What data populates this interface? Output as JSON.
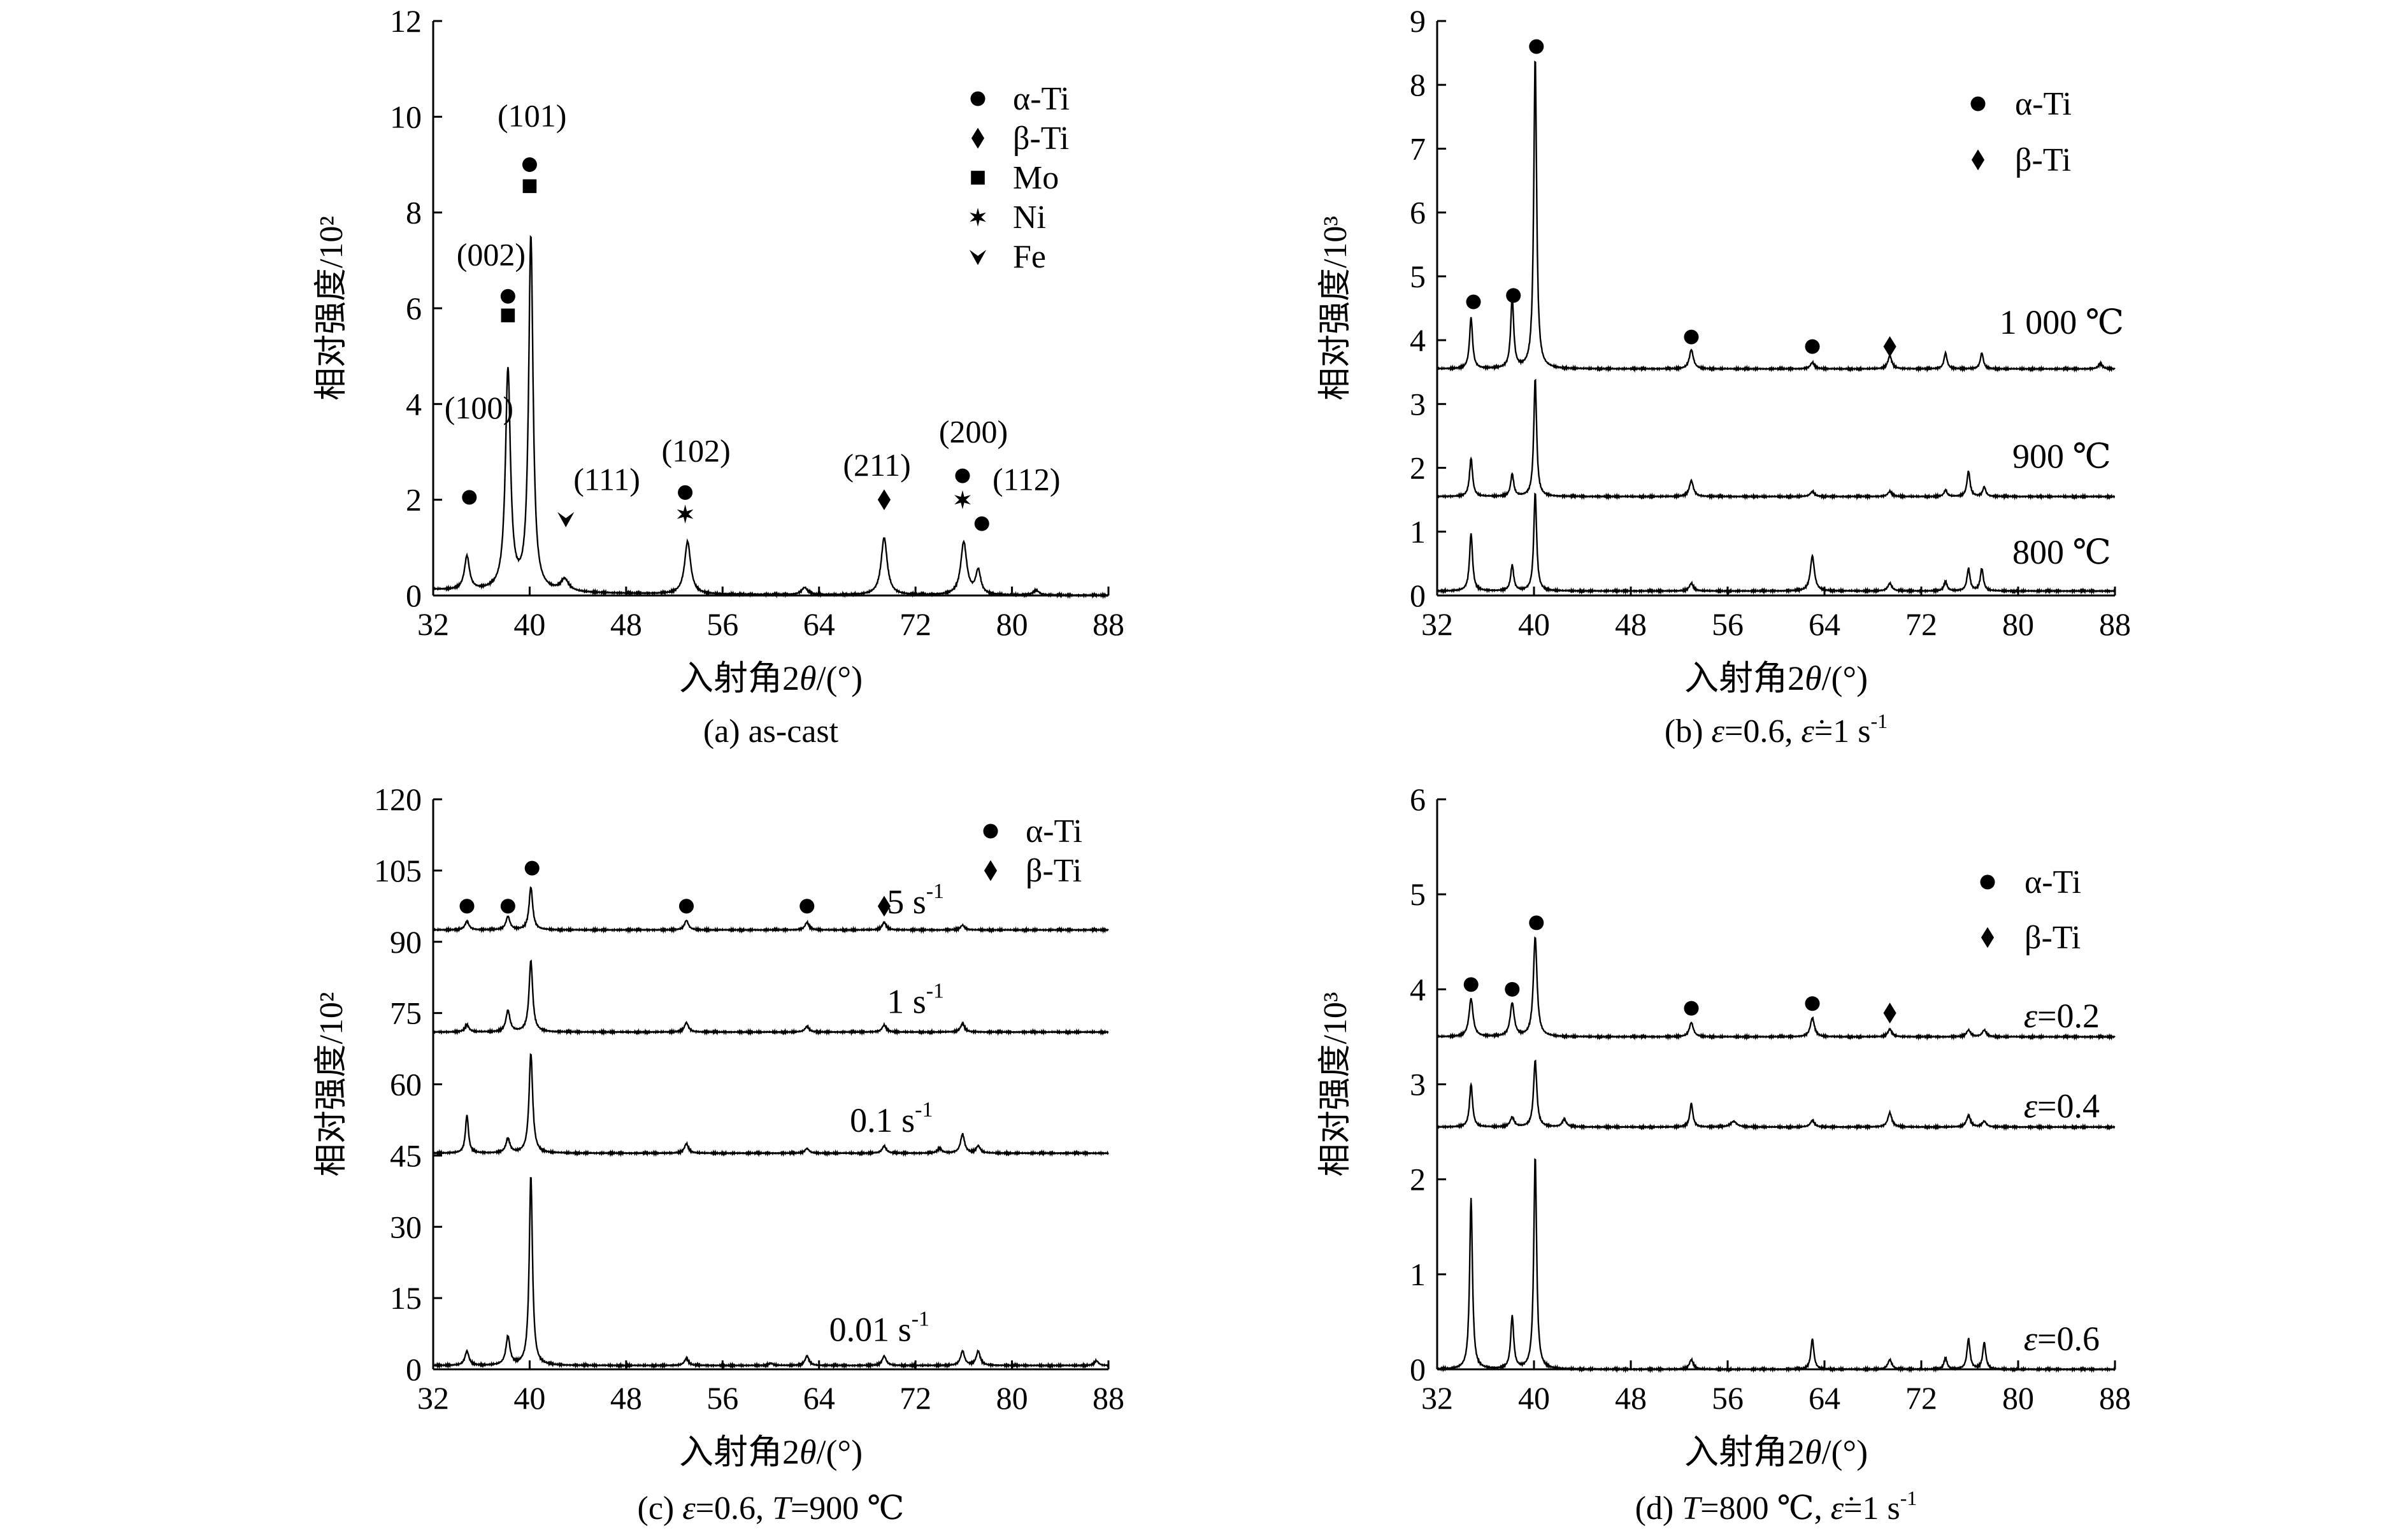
{
  "chart_data": [
    {
      "type": "line",
      "caption": "(a) as-cast",
      "xlabel_prefix": "入射角2",
      "xlabel_theta": "θ",
      "xlabel_suffix": "/(°)",
      "ylabel": "相对强度/10²",
      "xlim": [
        32,
        88
      ],
      "ylim": [
        0,
        12
      ],
      "xticks": [
        32,
        40,
        48,
        56,
        64,
        72,
        80,
        88
      ],
      "yticks": [
        0,
        2,
        4,
        6,
        8,
        10,
        12
      ],
      "baseline": 0.8,
      "series": [
        {
          "offset": 0,
          "peaks": [
            [
              34.8,
              0.7,
              0.25
            ],
            [
              38.2,
              4.6,
              0.25
            ],
            [
              40.1,
              7.4,
              0.22
            ],
            [
              42.9,
              0.25,
              0.4
            ],
            [
              53.1,
              1.1,
              0.3
            ],
            [
              62.8,
              0.15,
              0.3
            ],
            [
              69.4,
              1.2,
              0.3
            ],
            [
              76.0,
              1.1,
              0.3
            ],
            [
              77.2,
              0.5,
              0.25
            ],
            [
              82.0,
              0.1,
              0.3
            ]
          ]
        }
      ],
      "markers": [
        {
          "shape": "circle",
          "x": 35.0,
          "y": 2.05
        },
        {
          "shape": "square",
          "x": 38.2,
          "y": 5.85
        },
        {
          "shape": "circle",
          "x": 38.2,
          "y": 6.25
        },
        {
          "shape": "square",
          "x": 40.0,
          "y": 8.55
        },
        {
          "shape": "circle",
          "x": 40.0,
          "y": 9.0
        },
        {
          "shape": "fe",
          "x": 43.0,
          "y": 1.6
        },
        {
          "shape": "star",
          "x": 52.9,
          "y": 1.7
        },
        {
          "shape": "circle",
          "x": 52.9,
          "y": 2.15
        },
        {
          "shape": "diamond",
          "x": 69.4,
          "y": 2.0
        },
        {
          "shape": "star",
          "x": 75.9,
          "y": 2.0
        },
        {
          "shape": "circle",
          "x": 75.9,
          "y": 2.5
        },
        {
          "shape": "circle",
          "x": 77.5,
          "y": 1.5
        }
      ],
      "peak_labels": [
        {
          "text": "(100)",
          "x": 35.8,
          "y": 3.7
        },
        {
          "text": "(002)",
          "x": 36.8,
          "y": 6.9
        },
        {
          "text": "(101)",
          "x": 40.2,
          "y": 9.8
        },
        {
          "text": "(111)",
          "x": 46.4,
          "y": 2.2
        },
        {
          "text": "(102)",
          "x": 53.8,
          "y": 2.8
        },
        {
          "text": "(211)",
          "x": 68.8,
          "y": 2.5
        },
        {
          "text": "(200)",
          "x": 76.8,
          "y": 3.2
        },
        {
          "text": "(112)",
          "x": 81.2,
          "y": 2.2
        }
      ],
      "series_labels": [],
      "legend": [
        {
          "shape": "circle",
          "label": "α-Ti"
        },
        {
          "shape": "diamond",
          "label": "β-Ti"
        },
        {
          "shape": "square",
          "label": "Mo"
        },
        {
          "shape": "star",
          "label": "Ni"
        },
        {
          "shape": "fe",
          "label": "Fe"
        }
      ]
    },
    {
      "type": "line",
      "caption_parts": [
        "(b)  ",
        "ε",
        "=0.6, ",
        "ε̇",
        "=1 s",
        "-1"
      ],
      "xlabel_prefix": "入射角2",
      "xlabel_theta": "θ",
      "xlabel_suffix": "/(°)",
      "ylabel": "相对强度/10³",
      "xlim": [
        32,
        88
      ],
      "ylim": [
        0,
        9
      ],
      "xticks": [
        32,
        40,
        48,
        56,
        64,
        72,
        80,
        88
      ],
      "yticks": [
        0,
        1,
        2,
        3,
        4,
        5,
        6,
        7,
        8,
        9
      ],
      "baseline": 0.07,
      "series": [
        {
          "offset": 3.55,
          "peaks": [
            [
              34.8,
              0.8,
              0.15
            ],
            [
              38.2,
              1.1,
              0.15
            ],
            [
              40.1,
              4.9,
              0.14
            ],
            [
              53.0,
              0.3,
              0.2
            ],
            [
              63.0,
              0.1,
              0.2
            ],
            [
              69.4,
              0.2,
              0.2
            ],
            [
              74.0,
              0.25,
              0.15
            ],
            [
              77.0,
              0.25,
              0.15
            ],
            [
              86.8,
              0.08,
              0.2
            ]
          ]
        },
        {
          "offset": 1.55,
          "peaks": [
            [
              34.8,
              0.6,
              0.15
            ],
            [
              38.2,
              0.35,
              0.15
            ],
            [
              40.1,
              1.85,
              0.14
            ],
            [
              53.0,
              0.25,
              0.2
            ],
            [
              63.0,
              0.08,
              0.2
            ],
            [
              69.4,
              0.08,
              0.2
            ],
            [
              74.0,
              0.1,
              0.15
            ],
            [
              75.9,
              0.4,
              0.15
            ],
            [
              77.2,
              0.15,
              0.15
            ]
          ]
        },
        {
          "offset": 0.07,
          "peaks": [
            [
              34.8,
              0.9,
              0.15
            ],
            [
              38.2,
              0.4,
              0.15
            ],
            [
              40.1,
              1.55,
              0.14
            ],
            [
              53.0,
              0.12,
              0.2
            ],
            [
              63.0,
              0.55,
              0.2
            ],
            [
              69.4,
              0.12,
              0.2
            ],
            [
              74.0,
              0.15,
              0.15
            ],
            [
              75.9,
              0.35,
              0.15
            ],
            [
              77.0,
              0.35,
              0.15
            ]
          ]
        }
      ],
      "markers": [
        {
          "shape": "circle",
          "x": 35.0,
          "y": 4.6
        },
        {
          "shape": "circle",
          "x": 38.3,
          "y": 4.7
        },
        {
          "shape": "circle",
          "x": 40.2,
          "y": 8.6
        },
        {
          "shape": "circle",
          "x": 53.0,
          "y": 4.05
        },
        {
          "shape": "circle",
          "x": 63.0,
          "y": 3.9
        },
        {
          "shape": "diamond",
          "x": 69.4,
          "y": 3.9
        }
      ],
      "peak_labels": [],
      "series_labels": [
        {
          "text": "1 000 ℃",
          "x": 83.6,
          "y": 4.1
        },
        {
          "text": "900 ℃",
          "x": 83.6,
          "y": 2.0
        },
        {
          "text": "800 ℃",
          "x": 83.6,
          "y": 0.5
        }
      ],
      "legend": [
        {
          "shape": "circle",
          "label": "α-Ti"
        },
        {
          "shape": "diamond",
          "label": "β-Ti"
        }
      ]
    },
    {
      "type": "line",
      "caption_parts": [
        "(c)  ",
        "ε",
        "=0.6, ",
        "T",
        "=900 ℃"
      ],
      "xlabel_prefix": "入射角2",
      "xlabel_theta": "θ",
      "xlabel_suffix": "/(°)",
      "ylabel": "相对强度/10²",
      "xlim": [
        32,
        88
      ],
      "ylim": [
        0,
        120
      ],
      "xticks": [
        32,
        40,
        48,
        56,
        64,
        72,
        80,
        88
      ],
      "yticks": [
        0,
        15,
        30,
        45,
        60,
        75,
        90,
        105,
        120
      ],
      "baseline": 0.8,
      "series": [
        {
          "offset": 92.5,
          "peaks": [
            [
              34.8,
              1.8,
              0.2
            ],
            [
              38.2,
              2.8,
              0.2
            ],
            [
              40.1,
              9.0,
              0.18
            ],
            [
              53.0,
              2.0,
              0.2
            ],
            [
              63.0,
              1.6,
              0.2
            ],
            [
              69.4,
              1.6,
              0.2
            ],
            [
              75.9,
              1.0,
              0.2
            ]
          ]
        },
        {
          "offset": 71,
          "peaks": [
            [
              34.8,
              1.5,
              0.2
            ],
            [
              38.2,
              4.5,
              0.2
            ],
            [
              40.1,
              15.0,
              0.18
            ],
            [
              53.0,
              2.0,
              0.2
            ],
            [
              63.0,
              1.2,
              0.2
            ],
            [
              69.4,
              1.5,
              0.2
            ],
            [
              75.9,
              1.8,
              0.2
            ]
          ]
        },
        {
          "offset": 45.5,
          "peaks": [
            [
              34.8,
              8.0,
              0.15
            ],
            [
              38.2,
              3.0,
              0.2
            ],
            [
              40.1,
              21.0,
              0.18
            ],
            [
              53.0,
              2.0,
              0.2
            ],
            [
              63.0,
              1.0,
              0.2
            ],
            [
              69.4,
              1.5,
              0.2
            ],
            [
              74.0,
              1.0,
              0.2
            ],
            [
              75.9,
              4.0,
              0.2
            ],
            [
              77.2,
              1.5,
              0.2
            ]
          ]
        },
        {
          "offset": 0.8,
          "peaks": [
            [
              34.8,
              3.0,
              0.2
            ],
            [
              38.2,
              6.0,
              0.2
            ],
            [
              40.1,
              40.0,
              0.16
            ],
            [
              53.0,
              1.5,
              0.2
            ],
            [
              60.0,
              0.5,
              0.2
            ],
            [
              63.0,
              2.0,
              0.2
            ],
            [
              69.4,
              2.0,
              0.2
            ],
            [
              75.9,
              3.0,
              0.2
            ],
            [
              77.2,
              3.0,
              0.2
            ],
            [
              87.0,
              1.0,
              0.2
            ]
          ]
        }
      ],
      "markers": [
        {
          "shape": "circle",
          "x": 34.8,
          "y": 97.5
        },
        {
          "shape": "circle",
          "x": 38.2,
          "y": 97.5
        },
        {
          "shape": "circle",
          "x": 40.2,
          "y": 105.5
        },
        {
          "shape": "circle",
          "x": 53.0,
          "y": 97.5
        },
        {
          "shape": "circle",
          "x": 63.0,
          "y": 97.5
        },
        {
          "shape": "diamond",
          "x": 69.4,
          "y": 97.5
        }
      ],
      "peak_labels": [],
      "series_labels": [
        {
          "text": "5 s",
          "sup": "-1",
          "x": 72.0,
          "y": 96
        },
        {
          "text": "1 s",
          "sup": "-1",
          "x": 72.0,
          "y": 75
        },
        {
          "text": "0.1 s",
          "sup": "-1",
          "x": 70.0,
          "y": 50
        },
        {
          "text": "0.01 s",
          "sup": "-1",
          "x": 69.0,
          "y": 6
        }
      ],
      "legend": [
        {
          "shape": "circle",
          "label": "α-Ti"
        },
        {
          "shape": "diamond",
          "label": "β-Ti"
        }
      ]
    },
    {
      "type": "line",
      "caption_parts": [
        "(d)  ",
        "T",
        "=800 ℃, ",
        "ε̇",
        "=1 s",
        "-1"
      ],
      "xlabel_prefix": "入射角2",
      "xlabel_theta": "θ",
      "xlabel_suffix": "/(°)",
      "ylabel": "相对强度/10³",
      "xlim": [
        32,
        88
      ],
      "ylim": [
        0,
        6
      ],
      "xticks": [
        32,
        40,
        48,
        56,
        64,
        72,
        80,
        88
      ],
      "yticks": [
        0,
        1,
        2,
        3,
        4,
        5,
        6
      ],
      "baseline": 0.0,
      "series": [
        {
          "offset": 3.5,
          "peaks": [
            [
              34.8,
              0.4,
              0.2
            ],
            [
              38.2,
              0.35,
              0.2
            ],
            [
              40.1,
              1.05,
              0.18
            ],
            [
              53.0,
              0.15,
              0.2
            ],
            [
              63.0,
              0.2,
              0.2
            ],
            [
              69.4,
              0.08,
              0.2
            ],
            [
              75.9,
              0.07,
              0.2
            ],
            [
              77.2,
              0.07,
              0.2
            ]
          ]
        },
        {
          "offset": 2.55,
          "peaks": [
            [
              34.8,
              0.45,
              0.15
            ],
            [
              38.2,
              0.1,
              0.2
            ],
            [
              40.1,
              0.7,
              0.16
            ],
            [
              42.5,
              0.08,
              0.2
            ],
            [
              53.0,
              0.25,
              0.15
            ],
            [
              56.5,
              0.06,
              0.3
            ],
            [
              63.0,
              0.07,
              0.2
            ],
            [
              69.4,
              0.15,
              0.2
            ],
            [
              75.9,
              0.12,
              0.2
            ],
            [
              77.2,
              0.06,
              0.2
            ]
          ]
        },
        {
          "offset": 0.0,
          "peaks": [
            [
              34.8,
              1.8,
              0.14
            ],
            [
              38.2,
              0.55,
              0.15
            ],
            [
              40.1,
              2.25,
              0.14
            ],
            [
              53.0,
              0.1,
              0.2
            ],
            [
              63.0,
              0.32,
              0.15
            ],
            [
              69.4,
              0.1,
              0.2
            ],
            [
              74.0,
              0.12,
              0.15
            ],
            [
              75.9,
              0.32,
              0.15
            ],
            [
              77.2,
              0.28,
              0.15
            ]
          ]
        }
      ],
      "markers": [
        {
          "shape": "circle",
          "x": 34.8,
          "y": 4.05
        },
        {
          "shape": "circle",
          "x": 38.2,
          "y": 4.0
        },
        {
          "shape": "circle",
          "x": 40.2,
          "y": 4.7
        },
        {
          "shape": "circle",
          "x": 53.0,
          "y": 3.8
        },
        {
          "shape": "circle",
          "x": 63.0,
          "y": 3.85
        },
        {
          "shape": "diamond",
          "x": 69.4,
          "y": 3.75
        }
      ],
      "peak_labels": [],
      "series_labels": [
        {
          "eps": "ε",
          "text": "=0.2",
          "x": 83.6,
          "y": 3.6
        },
        {
          "eps": "ε",
          "text": "=0.4",
          "x": 83.6,
          "y": 2.65
        },
        {
          "eps": "ε",
          "text": "=0.6",
          "x": 83.6,
          "y": 0.2
        }
      ],
      "legend": [
        {
          "shape": "circle",
          "label": "α-Ti"
        },
        {
          "shape": "diamond",
          "label": "β-Ti"
        }
      ]
    }
  ]
}
